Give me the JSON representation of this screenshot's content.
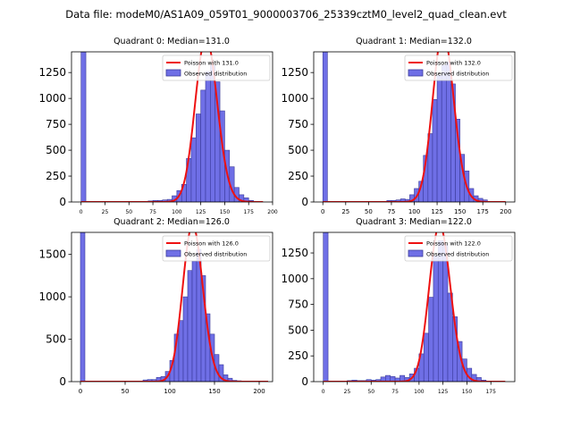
{
  "suptitle": "Data file: modeM0/AS1A09_059T01_9000003706_25339cztM0_level2_quad_clean.evt",
  "colors": {
    "bar": "#6f6fe6",
    "bar_edge": "#3a3a9a",
    "curve": "#ee1111"
  },
  "chart_data": [
    {
      "type": "bar",
      "title": "Quadrant 0: Median=131.0",
      "median": 131,
      "legend": {
        "curve": "Poisson with 131.0",
        "bars": "Observed distribution",
        "placement": "top-right"
      },
      "xlim": [
        -10,
        200
      ],
      "ylim": [
        0,
        1450
      ],
      "xticks": [
        0,
        25,
        50,
        75,
        100,
        125,
        150,
        175,
        200
      ],
      "yticks": [
        0,
        250,
        500,
        750,
        1000,
        1250
      ],
      "xtick_fontsize_small": true,
      "bin_width": 5,
      "bins": [
        [
          0,
          1450
        ],
        [
          70,
          10
        ],
        [
          75,
          15
        ],
        [
          80,
          15
        ],
        [
          85,
          20
        ],
        [
          90,
          25
        ],
        [
          95,
          60
        ],
        [
          100,
          110
        ],
        [
          105,
          170
        ],
        [
          110,
          420
        ],
        [
          115,
          620
        ],
        [
          120,
          850
        ],
        [
          125,
          1080
        ],
        [
          130,
          1260
        ],
        [
          135,
          1320
        ],
        [
          140,
          1160
        ],
        [
          145,
          880
        ],
        [
          150,
          500
        ],
        [
          155,
          340
        ],
        [
          160,
          140
        ],
        [
          165,
          70
        ],
        [
          170,
          40
        ],
        [
          175,
          15
        ],
        [
          180,
          5
        ]
      ],
      "curve": {
        "mean": 131.0,
        "x_range": [
          0,
          190
        ]
      }
    },
    {
      "type": "bar",
      "title": "Quadrant 1: Median=132.0",
      "median": 132,
      "legend": {
        "curve": "Poisson with 132.0",
        "bars": "Observed distribution",
        "placement": "top-right"
      },
      "xlim": [
        -10,
        210
      ],
      "ylim": [
        0,
        1450
      ],
      "xticks": [
        0,
        25,
        50,
        75,
        100,
        125,
        150,
        175,
        200
      ],
      "yticks": [
        0,
        250,
        500,
        750,
        1000,
        1250
      ],
      "xtick_fontsize_small": false,
      "bin_width": 5,
      "bins": [
        [
          0,
          1450
        ],
        [
          70,
          15
        ],
        [
          75,
          15
        ],
        [
          80,
          20
        ],
        [
          85,
          30
        ],
        [
          90,
          25
        ],
        [
          95,
          70
        ],
        [
          100,
          130
        ],
        [
          105,
          200
        ],
        [
          110,
          450
        ],
        [
          115,
          660
        ],
        [
          120,
          990
        ],
        [
          125,
          1220
        ],
        [
          130,
          1320
        ],
        [
          135,
          1350
        ],
        [
          140,
          1140
        ],
        [
          145,
          800
        ],
        [
          150,
          460
        ],
        [
          155,
          300
        ],
        [
          160,
          130
        ],
        [
          165,
          60
        ],
        [
          170,
          35
        ],
        [
          175,
          20
        ],
        [
          180,
          5
        ]
      ],
      "curve": {
        "mean": 132.0,
        "x_range": [
          0,
          200
        ]
      }
    },
    {
      "type": "bar",
      "title": "Quadrant 2: Median=126.0",
      "median": 126,
      "legend": {
        "curve": "Poisson with 126.0",
        "bars": "Observed distribution",
        "placement": "top-right"
      },
      "xlim": [
        -10,
        215
      ],
      "ylim": [
        0,
        1760
      ],
      "xticks": [
        0,
        50,
        100,
        150,
        200
      ],
      "yticks": [
        0,
        500,
        1000,
        1500
      ],
      "xtick_fontsize_small": false,
      "bin_width": 5,
      "bins": [
        [
          0,
          1760
        ],
        [
          70,
          20
        ],
        [
          75,
          25
        ],
        [
          80,
          25
        ],
        [
          85,
          50
        ],
        [
          90,
          60
        ],
        [
          95,
          120
        ],
        [
          100,
          250
        ],
        [
          105,
          560
        ],
        [
          110,
          720
        ],
        [
          115,
          1000
        ],
        [
          120,
          1310
        ],
        [
          125,
          1420
        ],
        [
          130,
          1560
        ],
        [
          135,
          1250
        ],
        [
          140,
          800
        ],
        [
          145,
          560
        ],
        [
          150,
          320
        ],
        [
          155,
          200
        ],
        [
          160,
          80
        ],
        [
          165,
          40
        ],
        [
          170,
          15
        ],
        [
          175,
          10
        ],
        [
          180,
          5
        ]
      ],
      "curve": {
        "mean": 126.0,
        "x_range": [
          0,
          210
        ]
      }
    },
    {
      "type": "bar",
      "title": "Quadrant 3: Median=122.0",
      "median": 122,
      "legend": {
        "curve": "Poisson with 122.0",
        "bars": "Observed distribution",
        "placement": "top-right"
      },
      "xlim": [
        -10,
        200
      ],
      "ylim": [
        0,
        1450
      ],
      "xticks": [
        0,
        25,
        50,
        75,
        100,
        125,
        150,
        175
      ],
      "yticks": [
        0,
        250,
        500,
        750,
        1000,
        1250
      ],
      "xtick_fontsize_small": true,
      "bin_width": 5,
      "bins": [
        [
          0,
          1450
        ],
        [
          25,
          10
        ],
        [
          30,
          15
        ],
        [
          35,
          10
        ],
        [
          40,
          10
        ],
        [
          45,
          20
        ],
        [
          50,
          15
        ],
        [
          55,
          20
        ],
        [
          60,
          45
        ],
        [
          65,
          60
        ],
        [
          70,
          50
        ],
        [
          75,
          35
        ],
        [
          80,
          60
        ],
        [
          85,
          40
        ],
        [
          90,
          75
        ],
        [
          95,
          130
        ],
        [
          100,
          270
        ],
        [
          105,
          470
        ],
        [
          110,
          820
        ],
        [
          115,
          1220
        ],
        [
          120,
          1370
        ],
        [
          125,
          1330
        ],
        [
          130,
          860
        ],
        [
          135,
          630
        ],
        [
          140,
          390
        ],
        [
          145,
          220
        ],
        [
          150,
          130
        ],
        [
          155,
          70
        ],
        [
          160,
          40
        ],
        [
          165,
          15
        ],
        [
          170,
          5
        ]
      ],
      "curve": {
        "mean": 122.0,
        "x_range": [
          0,
          190
        ]
      }
    }
  ]
}
